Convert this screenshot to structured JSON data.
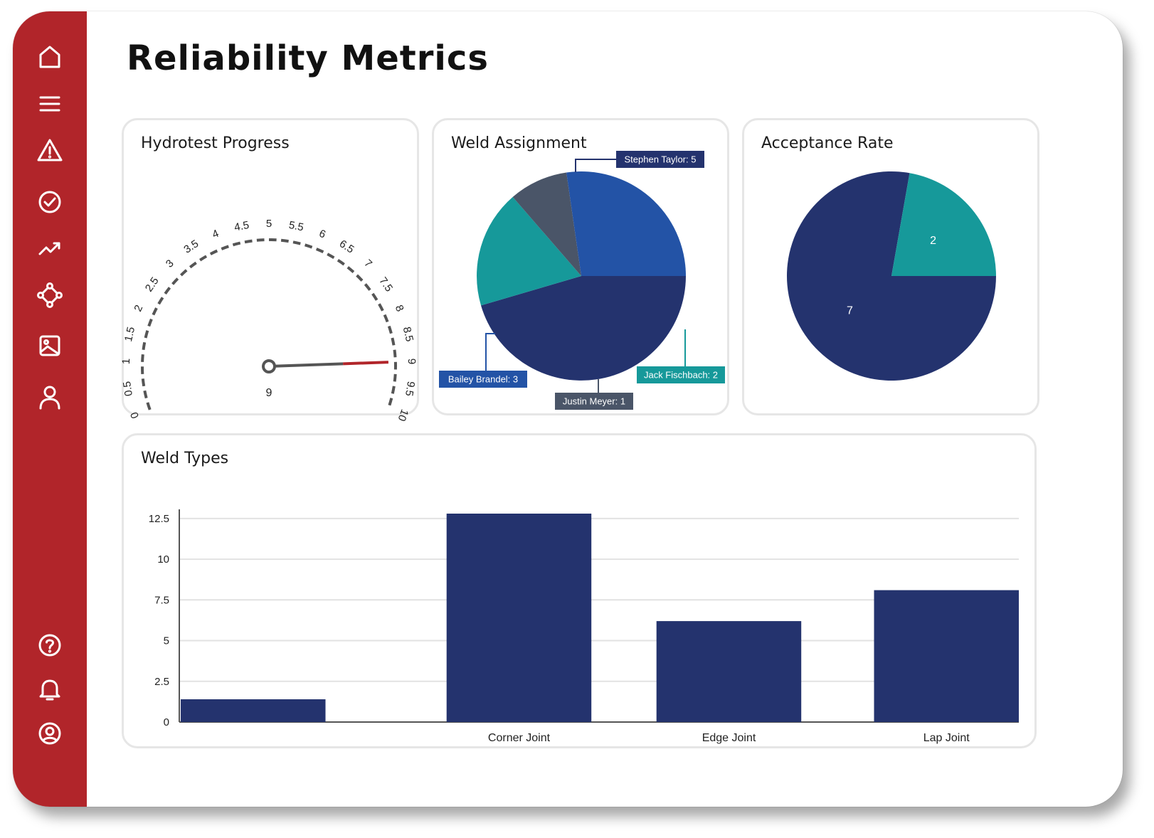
{
  "page": {
    "title": "Reliability Metrics"
  },
  "sidebar": {
    "top_items": [
      {
        "icon": "home-icon"
      },
      {
        "icon": "menu-icon"
      },
      {
        "icon": "alert-icon"
      },
      {
        "icon": "check-circle-icon"
      },
      {
        "icon": "trending-icon"
      },
      {
        "icon": "network-icon"
      },
      {
        "icon": "image-icon"
      },
      {
        "icon": "user-icon"
      }
    ],
    "bottom_items": [
      {
        "icon": "help-icon"
      },
      {
        "icon": "bell-icon"
      },
      {
        "icon": "account-icon"
      }
    ]
  },
  "colors": {
    "sidebar": "#b1252a",
    "navy": "#24336e",
    "blue": "#2353a6",
    "teal": "#16999a",
    "slate": "#4a5568",
    "needle": "#555555",
    "needle_tip": "#b1252a"
  },
  "cards": {
    "hydrotest": {
      "title": "Hydrotest Progress"
    },
    "weld_assignment": {
      "title": "Weld Assignment"
    },
    "acceptance": {
      "title": "Acceptance Rate"
    },
    "weld_types": {
      "title": "Weld Types"
    }
  },
  "chart_data": [
    {
      "type": "gauge",
      "title": "Hydrotest Progress",
      "min": 0,
      "max": 10,
      "ticks": [
        "0",
        "0.5",
        "1",
        "1.5",
        "2",
        "2.5",
        "3",
        "3.5",
        "4",
        "4.5",
        "5",
        "5.5",
        "6",
        "6.5",
        "7",
        "7.5",
        "8",
        "8.5",
        "9",
        "9.5",
        "10"
      ],
      "value": 9,
      "value_label": "9"
    },
    {
      "type": "pie",
      "title": "Weld Assignment",
      "slices": [
        {
          "name": "Stephen Taylor",
          "value": 5,
          "label": "Stephen Taylor: 5",
          "color": "#24336e"
        },
        {
          "name": "Jack Fischbach",
          "value": 2,
          "label": "Jack Fischbach: 2",
          "color": "#16999a"
        },
        {
          "name": "Justin Meyer",
          "value": 1,
          "label": "Justin Meyer: 1",
          "color": "#4a5568"
        },
        {
          "name": "Bailey Brandel",
          "value": 3,
          "label": "Bailey Brandel: 3",
          "color": "#2353a6"
        }
      ]
    },
    {
      "type": "pie",
      "title": "Acceptance Rate",
      "slices": [
        {
          "value": 7,
          "label": "7",
          "color": "#24336e"
        },
        {
          "value": 2,
          "label": "2",
          "color": "#16999a"
        }
      ]
    },
    {
      "type": "bar",
      "title": "Weld Types",
      "categories": [
        "",
        "Corner Joint",
        "Edge Joint",
        "Lap Joint"
      ],
      "values": [
        1.4,
        12.8,
        6.2,
        8.1
      ],
      "yticks": [
        "0",
        "2.5",
        "5",
        "7.5",
        "10",
        "12.5"
      ],
      "ylim": [
        0,
        12.8
      ],
      "grid": true,
      "color": "#24336e"
    }
  ]
}
